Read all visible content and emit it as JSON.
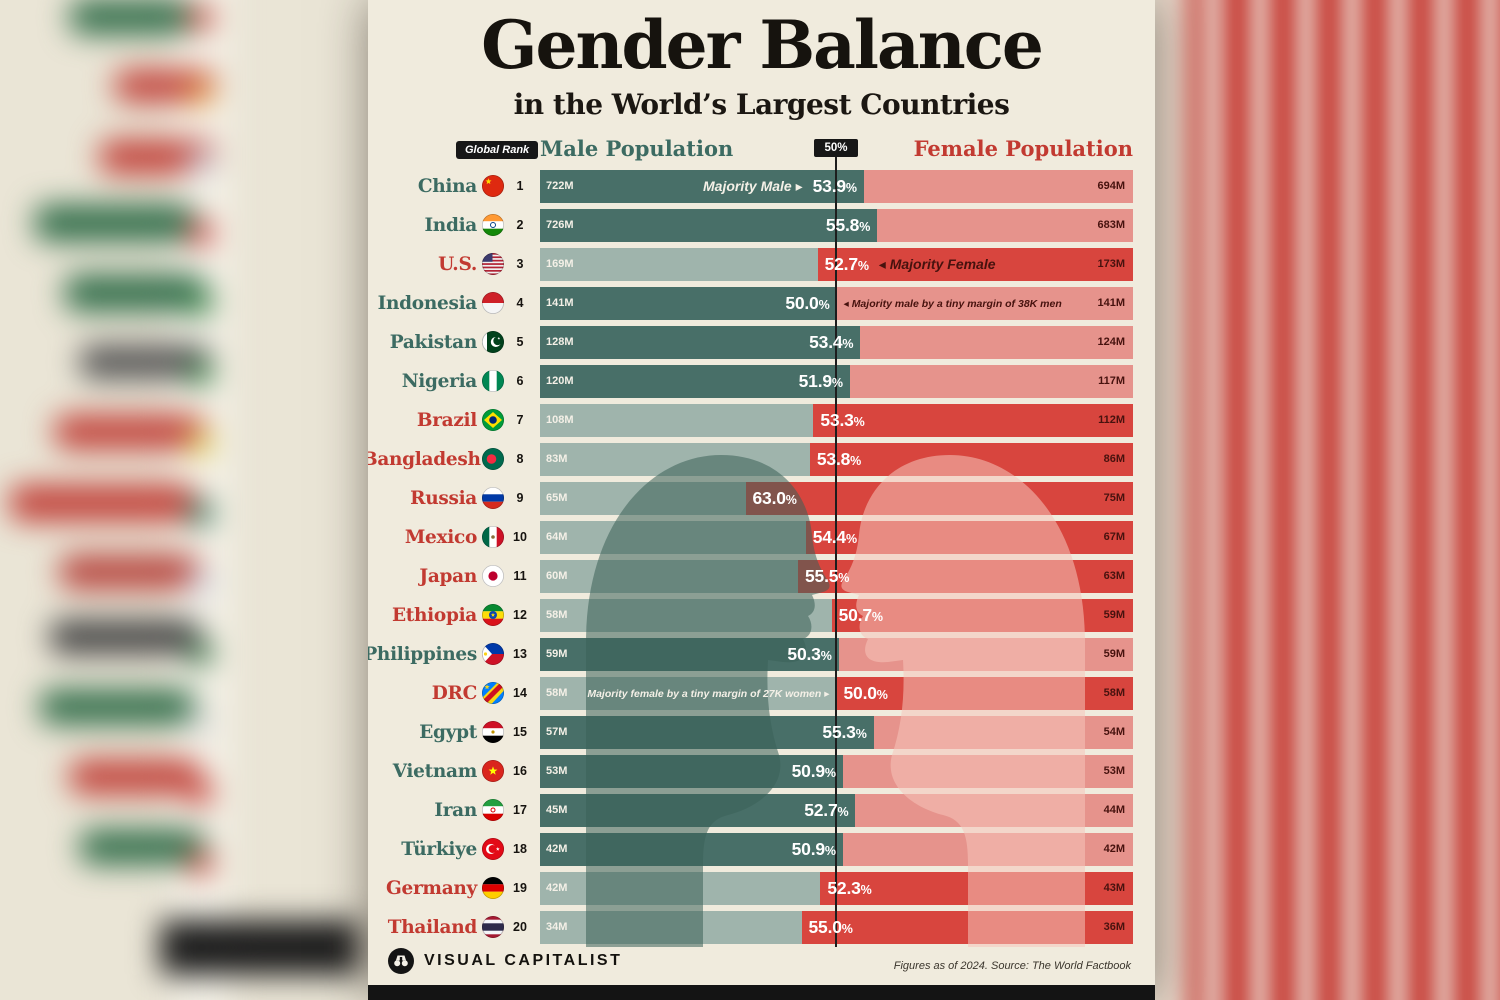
{
  "title": "Gender Balance",
  "subtitle": "in the World’s Largest Countries",
  "header": {
    "global_rank_label": "Global Rank",
    "male_label": "Male Population",
    "center_label": "50%",
    "female_label": "Female Population"
  },
  "footer": {
    "brand": "VISUAL CAPITALIST",
    "logo_icon": "binoculars-icon",
    "source_note": "Figures as of 2024. Source: The World Factbook"
  },
  "colors": {
    "panel_bg": "#f0ebdd",
    "teal_dark": "#486f68",
    "teal_light": "#9fb4ac",
    "red_bright": "#d8453e",
    "red_light": "#e6938c",
    "teal_text": "#3c6b62",
    "red_text": "#c23a31",
    "maroon_value_text": "#47120e",
    "black": "#171717"
  },
  "rows": [
    {
      "rank": 1,
      "country": "China",
      "flag": "china",
      "male_value": "722M",
      "female_value": "694M",
      "percent": "53.9%",
      "majority": "male",
      "note": "Majority Male ▸",
      "note_side": "male",
      "note_size": "big"
    },
    {
      "rank": 2,
      "country": "India",
      "flag": "india",
      "male_value": "726M",
      "female_value": "683M",
      "percent": "55.8%",
      "majority": "male",
      "note": null,
      "note_side": null,
      "note_size": null
    },
    {
      "rank": 3,
      "country": "U.S.",
      "flag": "us",
      "male_value": "169M",
      "female_value": "173M",
      "percent": "52.7%",
      "majority": "female",
      "note": "◂ Majority Female",
      "note_side": "female",
      "note_size": "big"
    },
    {
      "rank": 4,
      "country": "Indonesia",
      "flag": "indonesia",
      "male_value": "141M",
      "female_value": "141M",
      "percent": "50.0%",
      "majority": "male",
      "note": "◂ Majority male by a tiny margin of 38K men",
      "note_side": "female",
      "note_size": "small"
    },
    {
      "rank": 5,
      "country": "Pakistan",
      "flag": "pakistan",
      "male_value": "128M",
      "female_value": "124M",
      "percent": "53.4%",
      "majority": "male",
      "note": null,
      "note_side": null,
      "note_size": null
    },
    {
      "rank": 6,
      "country": "Nigeria",
      "flag": "nigeria",
      "male_value": "120M",
      "female_value": "117M",
      "percent": "51.9%",
      "majority": "male",
      "note": null,
      "note_side": null,
      "note_size": null
    },
    {
      "rank": 7,
      "country": "Brazil",
      "flag": "brazil",
      "male_value": "108M",
      "female_value": "112M",
      "percent": "53.3%",
      "majority": "female",
      "note": null,
      "note_side": null,
      "note_size": null
    },
    {
      "rank": 8,
      "country": "Bangladesh",
      "flag": "bangladesh",
      "male_value": "83M",
      "female_value": "86M",
      "percent": "53.8%",
      "majority": "female",
      "note": null,
      "note_side": null,
      "note_size": null
    },
    {
      "rank": 9,
      "country": "Russia",
      "flag": "russia",
      "male_value": "65M",
      "female_value": "75M",
      "percent": "63.0%",
      "majority": "female",
      "note": null,
      "note_side": null,
      "note_size": null
    },
    {
      "rank": 10,
      "country": "Mexico",
      "flag": "mexico",
      "male_value": "64M",
      "female_value": "67M",
      "percent": "54.4%",
      "majority": "female",
      "note": null,
      "note_side": null,
      "note_size": null
    },
    {
      "rank": 11,
      "country": "Japan",
      "flag": "japan",
      "male_value": "60M",
      "female_value": "63M",
      "percent": "55.5%",
      "majority": "female",
      "note": null,
      "note_side": null,
      "note_size": null
    },
    {
      "rank": 12,
      "country": "Ethiopia",
      "flag": "ethiopia",
      "male_value": "58M",
      "female_value": "59M",
      "percent": "50.7%",
      "majority": "female",
      "note": null,
      "note_side": null,
      "note_size": null
    },
    {
      "rank": 13,
      "country": "Philippines",
      "flag": "philippines",
      "male_value": "59M",
      "female_value": "59M",
      "percent": "50.3%",
      "majority": "male",
      "note": null,
      "note_side": null,
      "note_size": null
    },
    {
      "rank": 14,
      "country": "DRC",
      "flag": "drc",
      "male_value": "58M",
      "female_value": "58M",
      "percent": "50.0%",
      "majority": "female",
      "note": "Majority female by a tiny margin of 27K women ▸",
      "note_side": "male",
      "note_size": "small"
    },
    {
      "rank": 15,
      "country": "Egypt",
      "flag": "egypt",
      "male_value": "57M",
      "female_value": "54M",
      "percent": "55.3%",
      "majority": "male",
      "note": null,
      "note_side": null,
      "note_size": null
    },
    {
      "rank": 16,
      "country": "Vietnam",
      "flag": "vietnam",
      "male_value": "53M",
      "female_value": "53M",
      "percent": "50.9%",
      "majority": "male",
      "note": null,
      "note_side": null,
      "note_size": null
    },
    {
      "rank": 17,
      "country": "Iran",
      "flag": "iran",
      "male_value": "45M",
      "female_value": "44M",
      "percent": "52.7%",
      "majority": "male",
      "note": null,
      "note_side": null,
      "note_size": null
    },
    {
      "rank": 18,
      "country": "Türkiye",
      "flag": "turkiye",
      "male_value": "42M",
      "female_value": "42M",
      "percent": "50.9%",
      "majority": "male",
      "note": null,
      "note_side": null,
      "note_size": null
    },
    {
      "rank": 19,
      "country": "Germany",
      "flag": "germany",
      "male_value": "42M",
      "female_value": "43M",
      "percent": "52.3%",
      "majority": "female",
      "note": null,
      "note_side": null,
      "note_size": null
    },
    {
      "rank": 20,
      "country": "Thailand",
      "flag": "thailand",
      "male_value": "34M",
      "female_value": "36M",
      "percent": "55.0%",
      "majority": "female",
      "note": null,
      "note_side": null,
      "note_size": null
    }
  ],
  "chart_data": {
    "type": "bar",
    "subtype": "diverging-horizontal",
    "title": "Gender Balance",
    "subtitle": "in the World’s Largest Countries",
    "categories": [
      "China",
      "India",
      "U.S.",
      "Indonesia",
      "Pakistan",
      "Nigeria",
      "Brazil",
      "Bangladesh",
      "Russia",
      "Mexico",
      "Japan",
      "Ethiopia",
      "Philippines",
      "DRC",
      "Egypt",
      "Vietnam",
      "Iran",
      "Türkiye",
      "Germany",
      "Thailand"
    ],
    "global_rank": [
      1,
      2,
      3,
      4,
      5,
      6,
      7,
      8,
      9,
      10,
      11,
      12,
      13,
      14,
      15,
      16,
      17,
      18,
      19,
      20
    ],
    "series": [
      {
        "name": "Male Population (M)",
        "values": [
          722,
          726,
          169,
          141,
          128,
          120,
          108,
          83,
          65,
          64,
          60,
          58,
          59,
          58,
          57,
          53,
          45,
          42,
          42,
          34
        ]
      },
      {
        "name": "Female Population (M)",
        "values": [
          694,
          683,
          173,
          141,
          124,
          117,
          112,
          86,
          75,
          67,
          63,
          59,
          59,
          58,
          54,
          53,
          44,
          42,
          43,
          36
        ]
      },
      {
        "name": "Majority share (%)",
        "values": [
          53.9,
          55.8,
          52.7,
          50.0,
          53.4,
          51.9,
          53.3,
          53.8,
          63.0,
          54.4,
          55.5,
          50.7,
          50.3,
          50.0,
          55.3,
          50.9,
          52.7,
          50.9,
          52.3,
          55.0
        ]
      }
    ],
    "majority": [
      "male",
      "male",
      "female",
      "male",
      "male",
      "male",
      "female",
      "female",
      "female",
      "female",
      "female",
      "female",
      "male",
      "female",
      "male",
      "male",
      "male",
      "male",
      "female",
      "female"
    ],
    "annotations": [
      "Majority Male (China row)",
      "Majority Female (U.S. row)",
      "Majority male by a tiny margin of 38K men (Indonesia row)",
      "Majority female by a tiny margin of 27K women (DRC row)"
    ],
    "axis_note": "50% centerline between male (left, teal) and female (right, red) shares",
    "legend_position": "header",
    "source": "Figures as of 2024. Source: The World Factbook"
  }
}
